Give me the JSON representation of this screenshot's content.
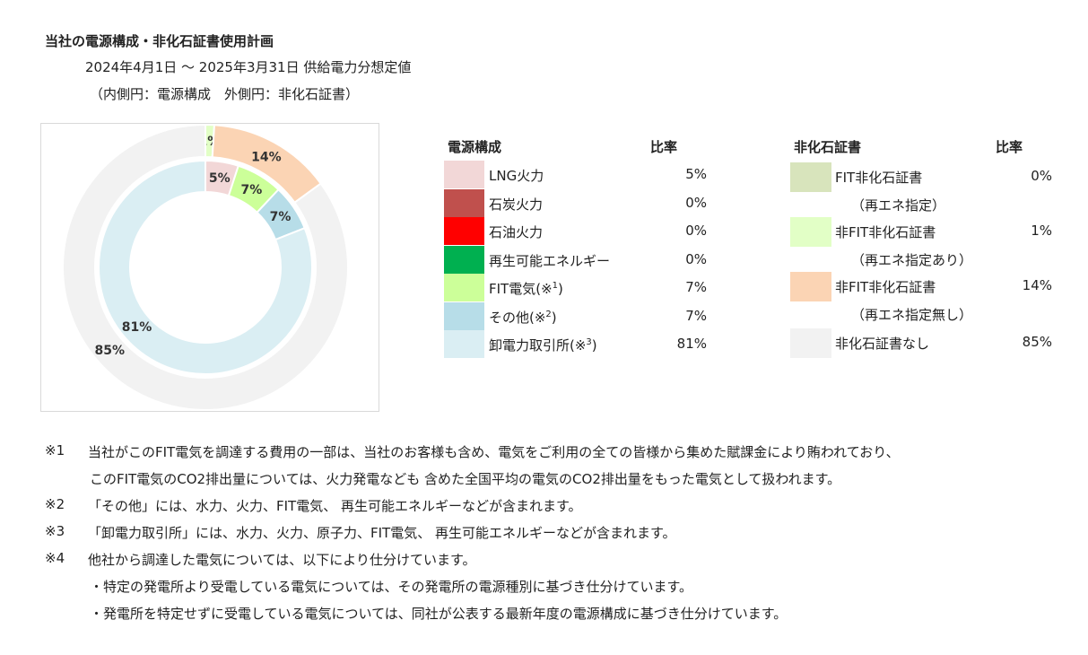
{
  "title": "当社の電源構成・非化石証書使用計画",
  "subtitle": "2024年4月1日 ～ 2025年3月31日 供給電力分想定値",
  "subtitle2": "（内側円：電源構成　外側円：非化石証書）",
  "chart_data": [
    {
      "type": "pie",
      "name": "電源構成",
      "categories": [
        "LNG火力",
        "石炭火力",
        "石油火力",
        "再生可能エネルギー",
        "FIT電気(※1)",
        "その他(※2)",
        "卸電力取引所(※3)"
      ],
      "values": [
        5,
        0,
        0,
        0,
        7,
        7,
        81
      ],
      "colors": [
        "#f2d7d7",
        "#c0504d",
        "#ff0000",
        "#00b050",
        "#ccff99",
        "#b7dde8",
        "#daeef3"
      ],
      "data_labels": [
        "5%",
        "",
        "",
        "",
        "7%",
        "7%",
        "81%"
      ],
      "ring": "inner"
    },
    {
      "type": "pie",
      "name": "非化石証書",
      "categories": [
        "FIT非化石証書（再エネ指定）",
        "非FIT非化石証書（再エネ指定あり）",
        "非FIT非化石証書（再エネ指定無し）",
        "非化石証書なし"
      ],
      "values": [
        0,
        1,
        14,
        85
      ],
      "colors": [
        "#d8e4bc",
        "#e2ffc6",
        "#fbd4b4",
        "#f2f2f2"
      ],
      "data_labels": [
        "",
        "1%",
        "14%",
        "85%"
      ],
      "ring": "outer"
    }
  ],
  "legend_left": {
    "header_label": "電源構成",
    "header_value": "比率",
    "rows": [
      {
        "label": "LNG火力",
        "value": "5%",
        "color": "#f2d7d7"
      },
      {
        "label": "石炭火力",
        "value": "0%",
        "color": "#c0504d"
      },
      {
        "label": "石油火力",
        "value": "0%",
        "color": "#ff0000"
      },
      {
        "label": "再生可能エネルギー",
        "value": "0%",
        "color": "#00b050"
      },
      {
        "label": "FIT電気(※",
        "sup": "1",
        "label_end": ")",
        "value": "7%",
        "color": "#ccff99"
      },
      {
        "label": "その他(※",
        "sup": "2",
        "label_end": ")",
        "value": "7%",
        "color": "#b7dde8"
      },
      {
        "label": "卸電力取引所(※",
        "sup": "3",
        "label_end": ")",
        "value": "81%",
        "color": "#daeef3"
      }
    ]
  },
  "legend_right": {
    "header_label": "非化石証書",
    "header_value": "比率",
    "rows": [
      {
        "label": "FIT非化石証書",
        "sub": "（再エネ指定）",
        "value": "0%",
        "color": "#d8e4bc"
      },
      {
        "label": "非FIT非化石証書",
        "sub": "（再エネ指定あり）",
        "value": "1%",
        "color": "#e2ffc6"
      },
      {
        "label": "非FIT非化石証書",
        "sub": "（再エネ指定無し）",
        "value": "14%",
        "color": "#fbd4b4"
      },
      {
        "label": "非化石証書なし",
        "value": "85%",
        "color": "#f2f2f2"
      }
    ]
  },
  "notes": [
    {
      "mark": "※1",
      "text": "当社がこのFIT電気を調達する費用の一部は、当社のお客様も含め、電気をご利用の全ての皆様から集めた賦課金により賄われており、"
    },
    {
      "mark": "",
      "text": "このFIT電気のCO2排出量については、火力発電なども 含めた全国平均の電気のCO2排出量をもった電気として扱われます。"
    },
    {
      "mark": "※2",
      "text": "「その他」には、水力、火力、FIT電気、 再生可能エネルギーなどが含まれます。"
    },
    {
      "mark": "※3",
      "text": "「卸電力取引所」には、水力、火力、原子力、FIT電気、 再生可能エネルギーなどが含まれます。"
    },
    {
      "mark": "※4",
      "text": "他社から調達した電気については、以下により仕分けています。"
    },
    {
      "mark": "",
      "text": "・特定の発電所より受電している電気については、その発電所の電源種別に基づき仕分けています。"
    },
    {
      "mark": "",
      "text": "・発電所を特定せずに受電している電気については、同社が公表する最新年度の電源構成に基づき仕分けています。"
    }
  ]
}
